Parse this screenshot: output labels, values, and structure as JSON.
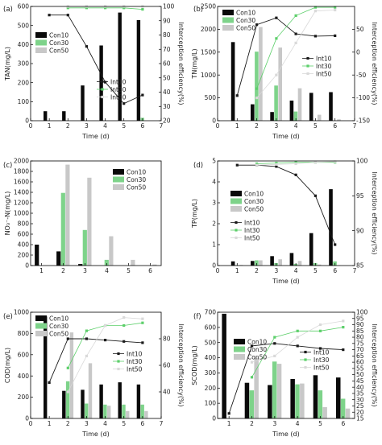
{
  "colors": {
    "con10": "#0a0a0a",
    "con30": "#7ed38a",
    "con50": "#c8c8c8",
    "int10": "#1a1a1a",
    "int30": "#5ccf6a",
    "int50": "#d9d9d9"
  },
  "chart_data": [
    {
      "panel": "(a)",
      "type": "bar+line",
      "ylabel": "TAN(mg/L)",
      "y2label": "Interception efficiency(%)",
      "xlabel": "Time (d)",
      "xlim": [
        0,
        7
      ],
      "xticks": [
        0,
        1,
        2,
        3,
        4,
        5,
        6,
        7
      ],
      "ylim": [
        0,
        600
      ],
      "yticks": [
        0,
        100,
        200,
        300,
        400,
        500,
        600
      ],
      "y2lim": [
        20,
        100
      ],
      "y2ticks": [
        20,
        30,
        40,
        50,
        60,
        70,
        80,
        90,
        100
      ],
      "legend_position": "left",
      "bar_x": [
        1,
        2,
        3,
        4,
        5,
        6
      ],
      "bars": [
        {
          "name": "Con10",
          "values": [
            50,
            50,
            185,
            395,
            568,
            528
          ]
        },
        {
          "name": "Con30",
          "values": [
            0,
            0,
            0,
            0,
            0,
            15
          ]
        },
        {
          "name": "Con50",
          "values": [
            0,
            0,
            0,
            0,
            0,
            0
          ]
        }
      ],
      "lines": [
        {
          "name": "Int10",
          "x": [
            1,
            2,
            3,
            4,
            5,
            6
          ],
          "values": [
            94,
            94,
            72,
            47,
            32,
            38
          ]
        },
        {
          "name": "Int30",
          "x": [
            2,
            3,
            4,
            5,
            6
          ],
          "values": [
            99,
            99,
            99,
            99,
            98
          ]
        },
        {
          "name": "Int50",
          "x": [
            2,
            3,
            4,
            5,
            6
          ],
          "values": [
            100,
            100,
            100,
            100,
            100
          ]
        }
      ]
    },
    {
      "panel": "(b)",
      "type": "bar+line",
      "ylabel": "TN(mg/L)",
      "y2label": "Interception efficiency(%)",
      "xlabel": "Time (d)",
      "xlim": [
        0,
        7
      ],
      "xticks": [
        0,
        1,
        2,
        3,
        4,
        5,
        6,
        7
      ],
      "ylim": [
        0,
        2500
      ],
      "yticks": [
        0,
        500,
        1000,
        1500,
        2000,
        2500
      ],
      "y2lim": [
        -150,
        100
      ],
      "y2ticks": [
        -150,
        -100,
        -50,
        0,
        50
      ],
      "legend_position": "top-left and right",
      "bar_x": [
        1,
        2,
        3,
        4,
        5,
        6
      ],
      "bars": [
        {
          "name": "Con10",
          "values": [
            1720,
            360,
            190,
            440,
            610,
            625
          ]
        },
        {
          "name": "Con30",
          "values": [
            0,
            1510,
            770,
            200,
            0,
            0
          ]
        },
        {
          "name": "Con50",
          "values": [
            0,
            2050,
            1600,
            710,
            130,
            30
          ]
        }
      ],
      "lines": [
        {
          "name": "Int10",
          "x": [
            1,
            2,
            3,
            4,
            5,
            6
          ],
          "values": [
            -95,
            60,
            75,
            40,
            35,
            36
          ]
        },
        {
          "name": "Int30",
          "x": [
            2,
            3,
            4,
            5,
            6
          ],
          "values": [
            -80,
            30,
            80,
            98,
            98
          ]
        },
        {
          "name": "Int50",
          "x": [
            2,
            3,
            4,
            5,
            6
          ],
          "values": [
            -100,
            -50,
            20,
            90,
            92
          ]
        }
      ]
    },
    {
      "panel": "(c)",
      "type": "bar",
      "ylabel": "NO₃⁻-N(mg/L)",
      "xlabel": "",
      "xlim": [
        0.5,
        6.5
      ],
      "xticks": [
        1,
        2,
        3,
        4,
        5,
        6
      ],
      "ylim": [
        0,
        2000
      ],
      "yticks": [
        0,
        200,
        400,
        600,
        800,
        1000,
        1200,
        1400,
        1600,
        1800,
        2000
      ],
      "legend_position": "top-right",
      "bar_x": [
        1,
        2,
        3,
        4,
        5,
        6
      ],
      "bars": [
        {
          "name": "Con10",
          "values": [
            400,
            270,
            30,
            0,
            0,
            0
          ]
        },
        {
          "name": "Con30",
          "values": [
            0,
            1390,
            680,
            110,
            0,
            0
          ]
        },
        {
          "name": "Con50",
          "values": [
            0,
            1930,
            1680,
            560,
            110,
            20
          ]
        }
      ],
      "lines": []
    },
    {
      "panel": "(d)",
      "type": "bar+line",
      "ylabel": "TP(mg/L)",
      "y2label": "Interception efficiency(%)",
      "xlabel": "Time (d)",
      "xlim": [
        0,
        7
      ],
      "xticks": [
        0,
        1,
        2,
        3,
        4,
        5,
        6,
        7
      ],
      "ylim": [
        0,
        5
      ],
      "yticks": [
        0,
        1,
        2,
        3,
        4,
        5
      ],
      "y2lim": [
        85,
        100
      ],
      "y2ticks": [
        85,
        90,
        95,
        100
      ],
      "legend_position": "left",
      "bar_x": [
        1,
        2,
        3,
        4,
        5,
        6
      ],
      "bars": [
        {
          "name": "Con10",
          "values": [
            0.2,
            0.22,
            0.45,
            0.6,
            1.55,
            3.65
          ]
        },
        {
          "name": "Con30",
          "values": [
            0.02,
            0.25,
            0.12,
            0.08,
            0.12,
            0.2
          ]
        },
        {
          "name": "Con50",
          "values": [
            0.03,
            0.25,
            0.3,
            0.22,
            0.05,
            0.02
          ]
        }
      ],
      "lines": [
        {
          "name": "Int10",
          "x": [
            1,
            2,
            3,
            4,
            5,
            6
          ],
          "values": [
            99.4,
            99.4,
            99.2,
            98.0,
            95.0,
            88.0
          ]
        },
        {
          "name": "Int30",
          "x": [
            2,
            3,
            4,
            5,
            6
          ],
          "values": [
            99.6,
            99.7,
            99.8,
            99.8,
            99.8
          ]
        },
        {
          "name": "Int50",
          "x": [
            2,
            3,
            4,
            5,
            6
          ],
          "values": [
            99.4,
            99.5,
            99.6,
            99.8,
            99.9
          ]
        }
      ]
    },
    {
      "panel": "(e)",
      "type": "bar+line",
      "ylabel": "COD(mg/L)",
      "y2label": "Interception efficiency(%)",
      "xlabel": "Time (d)",
      "xlim": [
        0,
        7
      ],
      "xticks": [
        0,
        1,
        2,
        3,
        4,
        5,
        6,
        7
      ],
      "ylim": [
        0,
        1000
      ],
      "yticks": [
        0,
        200,
        400,
        600,
        800,
        1000
      ],
      "y2lim": [
        20,
        100
      ],
      "y2ticks": [
        40,
        60,
        80
      ],
      "legend_position": "top-left and right",
      "bar_x": [
        1,
        2,
        3,
        4,
        5,
        6
      ],
      "bars": [
        {
          "name": "Con10",
          "values": [
            960,
            260,
            270,
            320,
            340,
            320
          ]
        },
        {
          "name": "Con30",
          "values": [
            0,
            350,
            140,
            130,
            130,
            130
          ]
        },
        {
          "name": "Con50",
          "values": [
            0,
            810,
            520,
            120,
            70,
            70
          ]
        }
      ],
      "lines": [
        {
          "name": "Int10",
          "x": [
            1,
            2,
            3,
            4,
            5,
            6
          ],
          "values": [
            47,
            80,
            80,
            79,
            78,
            77
          ]
        },
        {
          "name": "Int30",
          "x": [
            2,
            3,
            4,
            5,
            6
          ],
          "values": [
            58,
            86,
            90,
            90,
            92
          ]
        },
        {
          "name": "Int50",
          "x": [
            2,
            3,
            4,
            5,
            6
          ],
          "values": [
            40,
            67,
            90,
            96,
            95
          ]
        }
      ]
    },
    {
      "panel": "(f)",
      "type": "bar+line",
      "ylabel": "SCOD(mg/L)",
      "y2label": "Interception efficiency(%)",
      "xlabel": "Time (d)",
      "xlim": [
        0.5,
        6.5
      ],
      "xticks": [
        1,
        2,
        3,
        4,
        5,
        6
      ],
      "ylim": [
        0,
        700
      ],
      "yticks": [
        0,
        100,
        200,
        300,
        400,
        500,
        600,
        700
      ],
      "y2lim": [
        15,
        100
      ],
      "y2ticks": [
        15,
        20,
        25,
        30,
        35,
        40,
        45,
        50,
        55,
        60,
        65,
        70,
        75,
        80,
        85,
        90,
        95,
        100
      ],
      "legend_position": "left and right",
      "bar_x": [
        1,
        2,
        3,
        4,
        5,
        6
      ],
      "bars": [
        {
          "name": "Con10",
          "values": [
            690,
            235,
            220,
            260,
            285,
            270
          ]
        },
        {
          "name": "Con30",
          "values": [
            0,
            185,
            375,
            225,
            185,
            130
          ]
        },
        {
          "name": "Con50",
          "values": [
            0,
            400,
            360,
            230,
            75,
            65
          ]
        }
      ],
      "lines": [
        {
          "name": "Int10",
          "x": [
            1,
            2,
            3,
            4,
            5,
            6
          ],
          "values": [
            19,
            73,
            75,
            73,
            71,
            70
          ]
        },
        {
          "name": "Int30",
          "x": [
            2,
            3,
            4,
            5,
            6
          ],
          "values": [
            48,
            80,
            85,
            85,
            88
          ]
        },
        {
          "name": "Int50",
          "x": [
            2,
            3,
            4,
            5,
            6
          ],
          "values": [
            60,
            65,
            80,
            90,
            93
          ]
        }
      ]
    }
  ]
}
